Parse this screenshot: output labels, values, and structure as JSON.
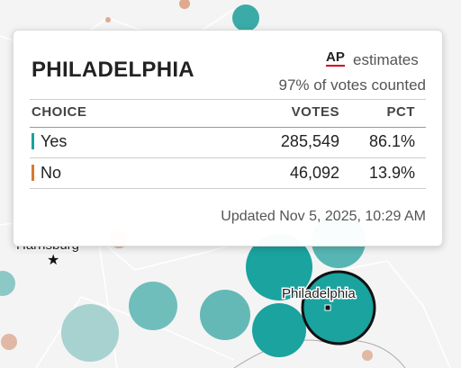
{
  "tooltip": {
    "title": "PHILADELPHIA",
    "source": "AP",
    "source_note": "estimates",
    "counted": "97% of votes counted",
    "columns": [
      "CHOICE",
      "VOTES",
      "PCT"
    ],
    "rows": [
      [
        "Yes",
        "285,549",
        "86.1%"
      ],
      [
        "No",
        "46,092",
        "13.9%"
      ]
    ],
    "updated": "Updated Nov 5, 2025, 10:29 AM"
  },
  "map": {
    "labels": [
      "Harrisburg",
      "Philadelphia"
    ]
  }
}
